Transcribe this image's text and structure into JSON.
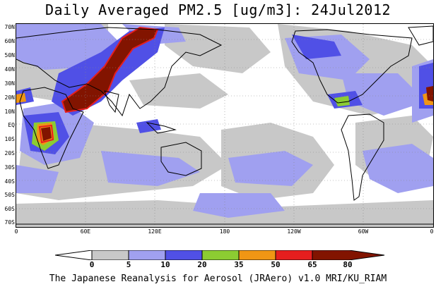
{
  "title": "Daily Averaged PM2.5 [ug/m3]: 24Jul2012",
  "lat_labels": [
    "70N",
    "60N",
    "50N",
    "40N",
    "30N",
    "20N",
    "10N",
    "EQ",
    "10S",
    "20S",
    "30S",
    "40S",
    "50S",
    "60S",
    "70S"
  ],
  "lon_labels": [
    "0",
    "60E",
    "120E",
    "180",
    "120W",
    "60W",
    "0"
  ],
  "colorbar": {
    "levels": [
      "0",
      "5",
      "10",
      "20",
      "35",
      "50",
      "65",
      "80"
    ],
    "colors": [
      "#ffffff",
      "#c8c8c8",
      "#a0a0f0",
      "#5050e6",
      "#8ccc32",
      "#f09614",
      "#e61e1e",
      "#821400"
    ]
  },
  "footer": "The Japanese Reanalysis for Aerosol (JRAero) v1.0 MRI/KU_RIAM",
  "palette": {
    "land_outline": "#000000",
    "grid": "#888888"
  }
}
